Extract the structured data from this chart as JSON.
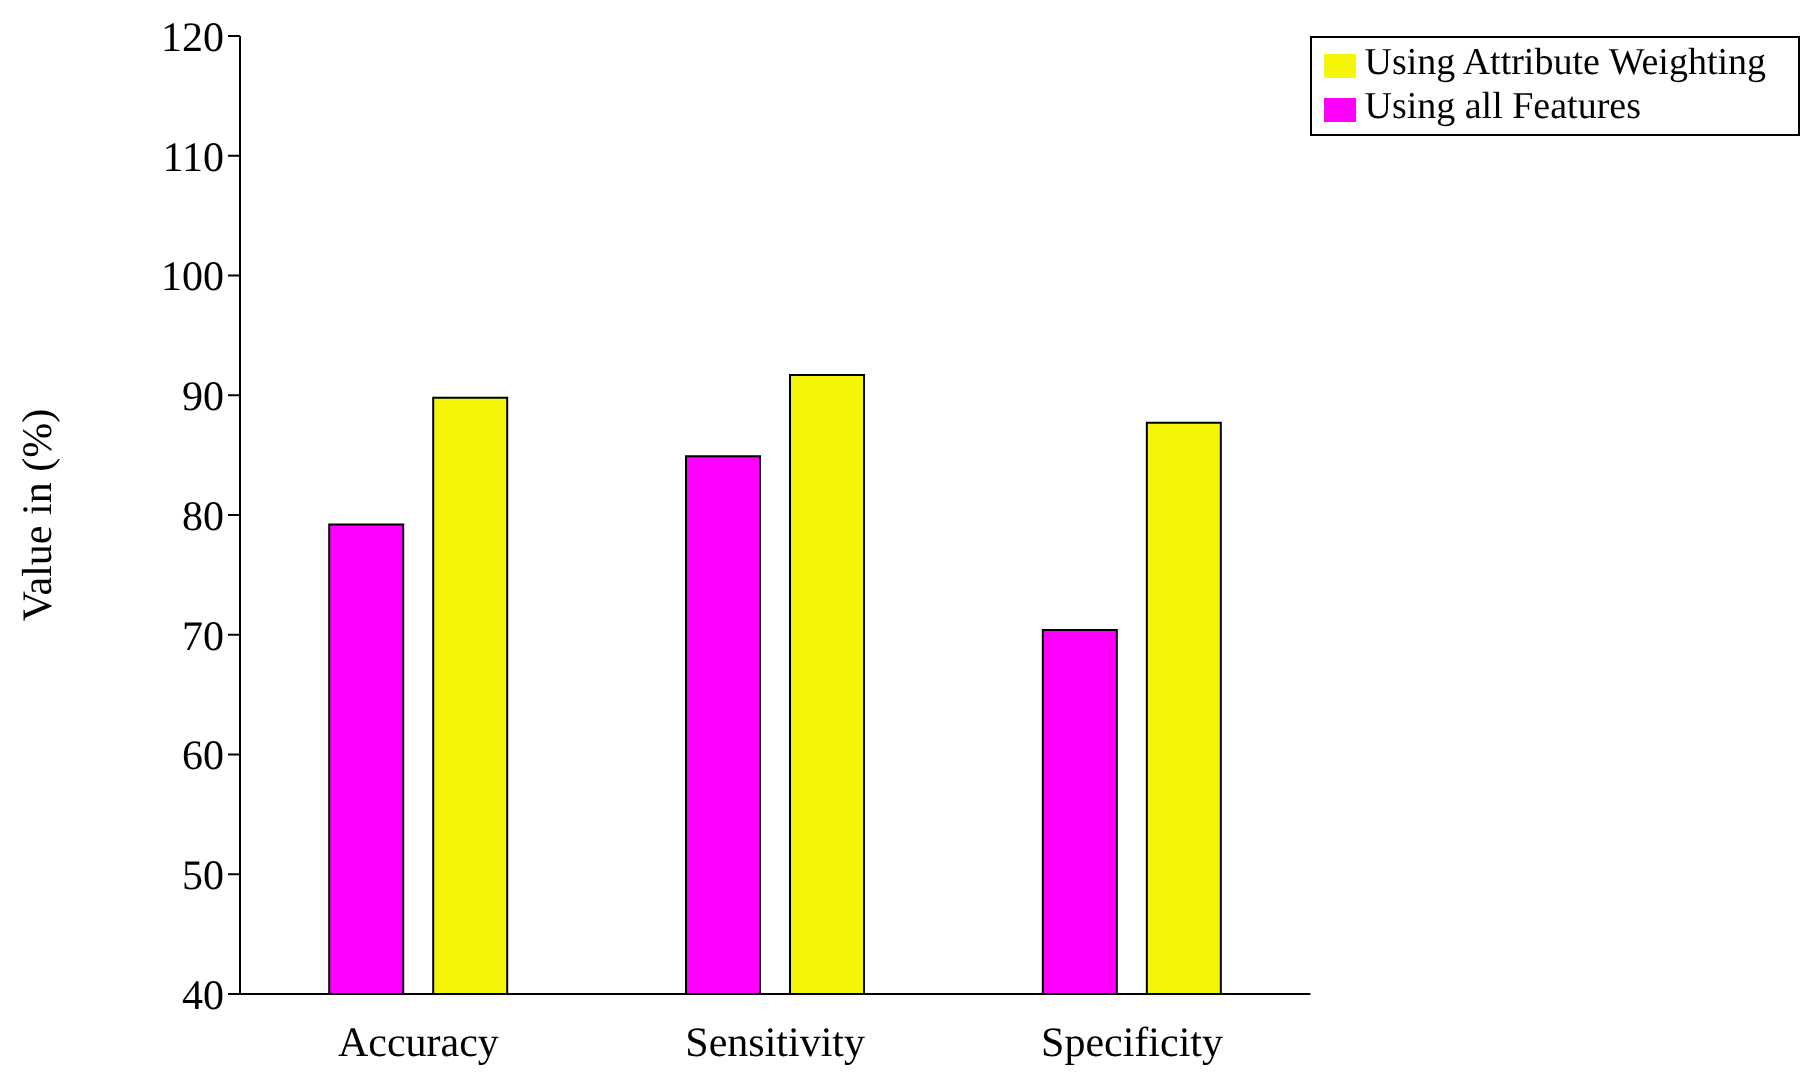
{
  "chart_data": {
    "type": "bar",
    "ylabel": "Value in (%)",
    "categories": [
      "Accuracy",
      "Sensitivity",
      "Specificity"
    ],
    "series": [
      {
        "name": "Using all Features",
        "color": "#ff00ff",
        "values": [
          79.2,
          84.9,
          70.4
        ]
      },
      {
        "name": "Using Attribute Weighting",
        "color": "#f5f50a",
        "values": [
          89.8,
          91.7,
          87.7
        ]
      }
    ],
    "ylim": [
      40,
      120
    ],
    "yticks": [
      40,
      50,
      60,
      70,
      80,
      90,
      100,
      110,
      120
    ],
    "grid": false,
    "legend": "top right"
  }
}
